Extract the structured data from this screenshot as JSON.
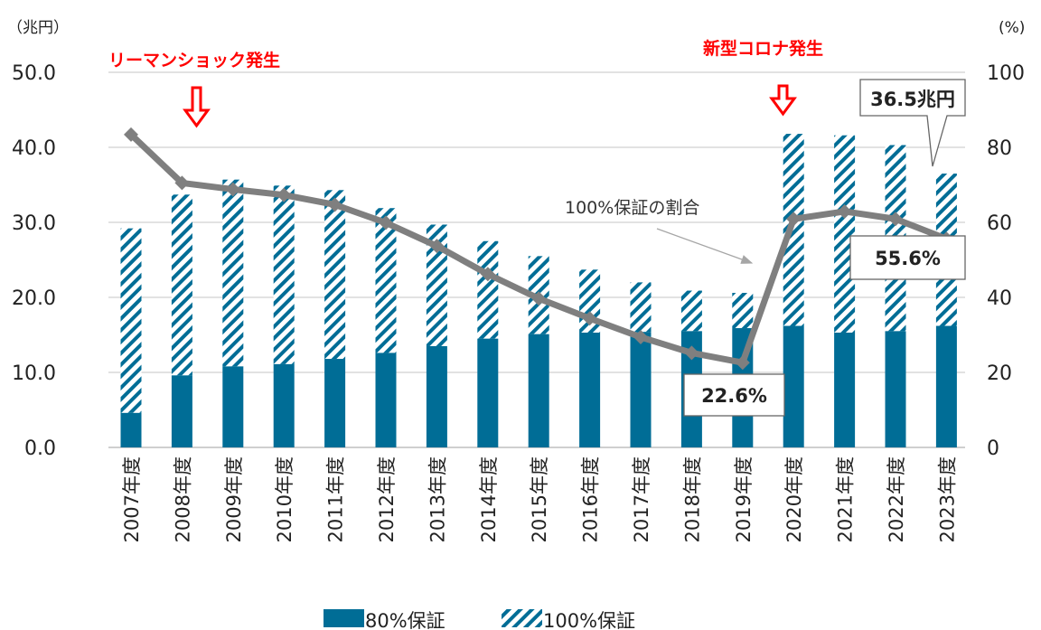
{
  "chart_data": {
    "type": "bar",
    "stacked": true,
    "left_unit": "（兆円）",
    "right_unit": "(%)",
    "ylim": [
      0,
      50
    ],
    "y2lim": [
      0,
      100
    ],
    "yticks": [
      "0.0",
      "10.0",
      "20.0",
      "30.0",
      "40.0",
      "50.0"
    ],
    "y2ticks": [
      "0",
      "20",
      "40",
      "60",
      "80",
      "100"
    ],
    "grid": true,
    "categories": [
      "2007年度",
      "2008年度",
      "2009年度",
      "2010年度",
      "2011年度",
      "2012年度",
      "2013年度",
      "2014年度",
      "2015年度",
      "2016年度",
      "2017年度",
      "2018年度",
      "2019年度",
      "2020年度",
      "2021年度",
      "2022年度",
      "2023年度"
    ],
    "series": [
      {
        "name": "80%保証",
        "kind": "bar",
        "color": "#006d96",
        "values": [
          4.6,
          9.6,
          10.8,
          11.1,
          11.8,
          12.6,
          13.5,
          14.5,
          15.1,
          15.3,
          15.4,
          15.5,
          15.9,
          16.2,
          15.3,
          15.5,
          16.2
        ]
      },
      {
        "name": "100%保証",
        "kind": "bar-hatched",
        "color": "#006d96",
        "values": [
          24.6,
          24.1,
          24.9,
          23.8,
          22.5,
          19.3,
          16.2,
          13.0,
          10.4,
          8.4,
          6.6,
          5.4,
          4.7,
          25.6,
          26.3,
          24.8,
          20.3
        ]
      },
      {
        "name": "100%保証の割合",
        "kind": "line",
        "axis": "right",
        "color": "#7f7f7f",
        "values": [
          83.4,
          70.5,
          68.8,
          67.3,
          64.7,
          59.9,
          53.7,
          46.2,
          39.7,
          34.4,
          29.4,
          25.2,
          22.6,
          60.9,
          62.9,
          60.9,
          55.6
        ]
      }
    ],
    "legend_position": "bottom",
    "annotations": {
      "lehman": "リーマンショック発生",
      "corona": "新型コロナ発生",
      "total_2023": "36.5兆円",
      "ratio_2023": "55.6%",
      "ratio_2019": "22.6%",
      "line_label": "100%保証の割合"
    },
    "accent_color": "#ff0000"
  }
}
